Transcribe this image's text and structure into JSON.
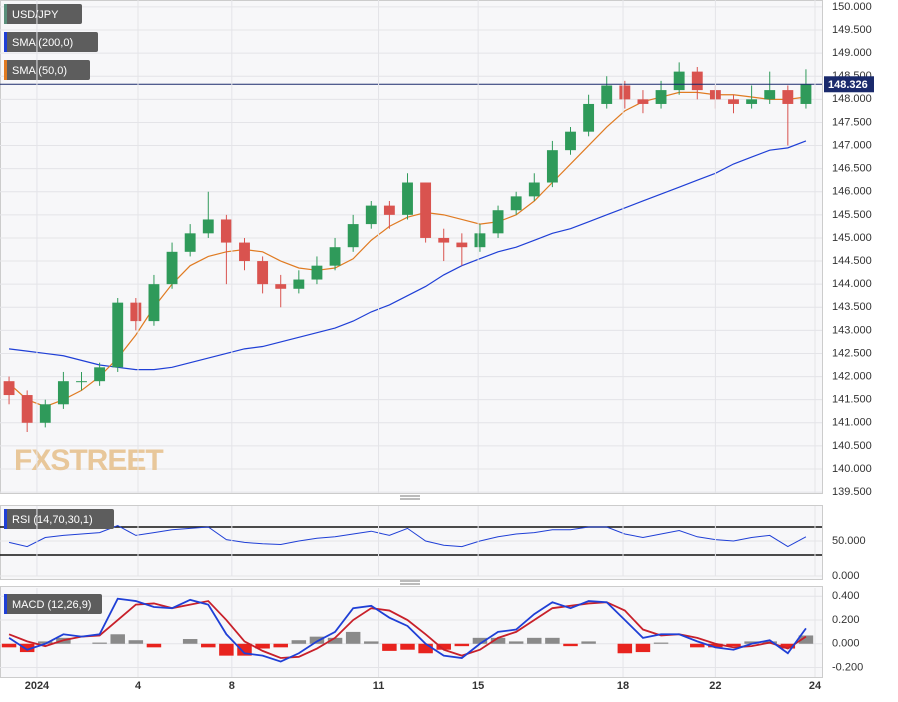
{
  "chart_data": [
    {
      "type": "candlestick",
      "watermark": "FXSTREET",
      "candles": {
        "name": "USD/JPY",
        "color": "#5a8f7b",
        "up_color": "#2f9a5a",
        "down_color": "#d9534f",
        "open": [
          141.9,
          141.6,
          141.0,
          141.4,
          141.9,
          141.9,
          142.2,
          143.6,
          143.2,
          144.0,
          144.7,
          145.1,
          145.4,
          144.9,
          144.5,
          144.0,
          143.9,
          144.1,
          144.4,
          144.8,
          145.3,
          145.7,
          145.5,
          146.2,
          145.0,
          144.9,
          144.8,
          145.1,
          145.6,
          145.9,
          146.2,
          146.9,
          147.3,
          147.9,
          148.3,
          148.0,
          147.9,
          148.2,
          148.6,
          148.2,
          148.0,
          147.9,
          148.0,
          148.2,
          147.9
        ],
        "high": [
          142.0,
          141.7,
          141.5,
          142.1,
          142.1,
          142.3,
          143.7,
          143.7,
          144.2,
          144.9,
          145.3,
          146.0,
          145.5,
          145.0,
          144.6,
          144.2,
          144.3,
          144.6,
          145.0,
          145.5,
          145.8,
          145.8,
          146.4,
          146.2,
          145.2,
          145.1,
          145.3,
          145.7,
          146.0,
          146.4,
          147.1,
          147.4,
          148.1,
          148.5,
          148.4,
          148.2,
          148.4,
          148.8,
          148.7,
          148.3,
          148.1,
          148.3,
          148.6,
          148.3,
          148.65
        ],
        "low": [
          141.4,
          140.8,
          140.9,
          141.3,
          141.7,
          141.8,
          142.1,
          143.0,
          143.1,
          143.9,
          144.6,
          145.0,
          144.0,
          144.3,
          143.8,
          143.5,
          143.8,
          144.0,
          144.3,
          144.7,
          145.2,
          145.2,
          145.4,
          144.9,
          144.5,
          144.4,
          144.7,
          145.0,
          145.5,
          145.8,
          146.1,
          146.8,
          147.2,
          147.8,
          147.8,
          147.7,
          147.8,
          148.1,
          148.0,
          147.8,
          147.7,
          147.8,
          147.9,
          147.0,
          147.8
        ],
        "close": [
          141.6,
          141.0,
          141.4,
          141.9,
          141.9,
          142.2,
          143.6,
          143.2,
          144.0,
          144.7,
          145.1,
          145.4,
          144.9,
          144.5,
          144.0,
          143.9,
          144.1,
          144.4,
          144.8,
          145.3,
          145.7,
          145.5,
          146.2,
          145.0,
          144.9,
          144.8,
          145.1,
          145.6,
          145.9,
          146.2,
          146.9,
          147.3,
          147.9,
          148.3,
          148.0,
          147.9,
          148.2,
          148.6,
          148.2,
          148.0,
          147.9,
          148.0,
          148.2,
          147.9,
          148.33
        ]
      },
      "series": [
        {
          "name": "SMA (200,0)",
          "color": "#1f3fd6",
          "values": [
            142.6,
            142.55,
            142.5,
            142.45,
            142.35,
            142.25,
            142.2,
            142.15,
            142.15,
            142.2,
            142.3,
            142.4,
            142.5,
            142.6,
            142.65,
            142.75,
            142.85,
            142.95,
            143.05,
            143.2,
            143.4,
            143.55,
            143.75,
            143.95,
            144.2,
            144.4,
            144.55,
            144.7,
            144.8,
            144.95,
            145.1,
            145.2,
            145.35,
            145.5,
            145.65,
            145.8,
            145.95,
            146.1,
            146.25,
            146.4,
            146.6,
            146.75,
            146.9,
            146.95,
            147.1
          ]
        },
        {
          "name": "SMA (50,0)",
          "color": "#e07b22",
          "values": [
            141.85,
            141.5,
            141.35,
            141.5,
            141.7,
            142.0,
            142.4,
            142.9,
            143.5,
            144.0,
            144.4,
            144.6,
            144.7,
            144.75,
            144.7,
            144.5,
            144.35,
            144.3,
            144.35,
            144.55,
            144.95,
            145.25,
            145.45,
            145.55,
            145.5,
            145.4,
            145.3,
            145.35,
            145.5,
            145.8,
            146.2,
            146.6,
            147.0,
            147.4,
            147.75,
            147.95,
            148.05,
            148.15,
            148.15,
            148.1,
            148.1,
            148.05,
            148.0,
            148.0,
            148.05
          ]
        }
      ],
      "last_price": 148.326,
      "xlim": [
        0,
        45
      ],
      "ylim": [
        139.48,
        150.15
      ],
      "yticks": [
        {
          "value": 139.5,
          "label": "139.500"
        },
        {
          "value": 140,
          "label": "140.000"
        },
        {
          "value": 140.5,
          "label": "140.500"
        },
        {
          "value": 141,
          "label": "141.000"
        },
        {
          "value": 141.5,
          "label": "141.500"
        },
        {
          "value": 142,
          "label": "142.000"
        },
        {
          "value": 142.5,
          "label": "142.500"
        },
        {
          "value": 143,
          "label": "143.000"
        },
        {
          "value": 143.5,
          "label": "143.500"
        },
        {
          "value": 144,
          "label": "144.000"
        },
        {
          "value": 144.5,
          "label": "144.500"
        },
        {
          "value": 145,
          "label": "145.000"
        },
        {
          "value": 145.5,
          "label": "145.500"
        },
        {
          "value": 146,
          "label": "146.000"
        },
        {
          "value": 146.5,
          "label": "146.500"
        },
        {
          "value": 147,
          "label": "147.000"
        },
        {
          "value": 147.5,
          "label": "147.500"
        },
        {
          "value": 148,
          "label": "148.000"
        },
        {
          "value": 148.5,
          "label": "148.500"
        },
        {
          "value": 149,
          "label": "149.000"
        },
        {
          "value": 149.5,
          "label": "149.500"
        },
        {
          "value": 150,
          "label": "150.000"
        }
      ],
      "grid": true
    },
    {
      "type": "line",
      "series": [
        {
          "name": "RSI (14,70,30,1)",
          "color": "#1f3fd6",
          "values": [
            48,
            42,
            55,
            58,
            60,
            62,
            72,
            58,
            62,
            66,
            68,
            70,
            52,
            48,
            46,
            45,
            50,
            54,
            56,
            60,
            64,
            58,
            68,
            50,
            44,
            42,
            50,
            56,
            60,
            62,
            66,
            66,
            70,
            70,
            60,
            55,
            60,
            65,
            56,
            52,
            50,
            55,
            58,
            42,
            56
          ]
        }
      ],
      "levels": [
        70,
        30
      ],
      "xlim": [
        0,
        45
      ],
      "ylim": [
        0,
        100
      ],
      "yticks": [
        {
          "value": 0,
          "label": "0.000"
        },
        {
          "value": 50,
          "label": "50.000"
        }
      ],
      "grid": true
    },
    {
      "type": "macd",
      "name": "MACD (12,26,9)",
      "macd": {
        "color": "#1f3fd6",
        "values": [
          0.05,
          -0.05,
          0.0,
          0.08,
          0.06,
          0.08,
          0.38,
          0.36,
          0.31,
          0.3,
          0.37,
          0.33,
          0.08,
          -0.08,
          -0.1,
          -0.15,
          -0.08,
          0.02,
          0.1,
          0.3,
          0.32,
          0.22,
          0.15,
          0.0,
          -0.1,
          -0.12,
          0.0,
          0.1,
          0.12,
          0.25,
          0.35,
          0.3,
          0.36,
          0.35,
          0.2,
          0.05,
          0.08,
          0.08,
          0.02,
          -0.03,
          -0.05,
          0.0,
          0.03,
          -0.08,
          0.13
        ]
      },
      "signal": {
        "color": "#c8202a",
        "values": [
          0.08,
          0.02,
          -0.02,
          0.03,
          0.06,
          0.07,
          0.2,
          0.33,
          0.34,
          0.3,
          0.33,
          0.36,
          0.2,
          0.02,
          -0.06,
          -0.12,
          -0.11,
          -0.04,
          0.05,
          0.2,
          0.3,
          0.28,
          0.2,
          0.08,
          -0.05,
          -0.1,
          -0.05,
          0.05,
          0.1,
          0.2,
          0.3,
          0.32,
          0.34,
          0.35,
          0.28,
          0.12,
          0.07,
          0.08,
          0.05,
          0.0,
          -0.03,
          -0.02,
          0.01,
          -0.04,
          0.06
        ]
      },
      "histogram": {
        "up_color": "#8a8a8a",
        "down_color": "#e8231e",
        "values": [
          -0.03,
          -0.07,
          0.02,
          0.05,
          0.0,
          0.01,
          0.08,
          0.03,
          -0.03,
          0.0,
          0.04,
          -0.03,
          -0.1,
          -0.1,
          -0.04,
          -0.03,
          0.03,
          0.06,
          0.05,
          0.1,
          0.02,
          -0.06,
          -0.05,
          -0.08,
          -0.05,
          -0.02,
          0.05,
          0.05,
          0.02,
          0.05,
          0.05,
          -0.02,
          0.02,
          0.0,
          -0.08,
          -0.07,
          0.01,
          0.0,
          -0.03,
          -0.03,
          -0.02,
          0.02,
          0.02,
          -0.04,
          0.07
        ]
      },
      "xlim": [
        0,
        45
      ],
      "ylim": [
        -0.28,
        0.47
      ],
      "yticks": [
        {
          "value": -0.2,
          "label": "-0.200"
        },
        {
          "value": 0,
          "label": "0.000"
        },
        {
          "value": 0.2,
          "label": "0.200"
        },
        {
          "value": 0.4,
          "label": "0.400"
        }
      ],
      "xticks": [
        {
          "value": 2.04,
          "label": "2024"
        },
        {
          "value": 7.62,
          "label": "4"
        },
        {
          "value": 12.8,
          "label": "8"
        },
        {
          "value": 20.9,
          "label": "11"
        },
        {
          "value": 26.4,
          "label": "15"
        },
        {
          "value": 34.4,
          "label": "18"
        },
        {
          "value": 39.5,
          "label": "22"
        },
        {
          "value": 45.0,
          "label": "24"
        }
      ],
      "grid": true
    }
  ]
}
